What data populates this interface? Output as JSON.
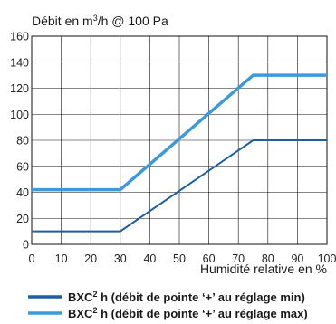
{
  "chart_data": {
    "type": "line",
    "ylabel": {
      "prefix": "Débit en m",
      "sup": "3",
      "suffix": "/h @ 100 Pa"
    },
    "xlabel": "Humidité relative en %",
    "xlim": [
      0,
      100
    ],
    "ylim": [
      0,
      160
    ],
    "x_ticks": [
      "0",
      "10",
      "20",
      "30",
      "40",
      "50",
      "60",
      "70",
      "80",
      "90",
      "100"
    ],
    "y_ticks": [
      "0",
      "20",
      "40",
      "60",
      "80",
      "100",
      "120",
      "140",
      "160"
    ],
    "grid": true,
    "legend_position": "bottom",
    "series": [
      {
        "name": {
          "prefix": "BXC",
          "sup": "2",
          "suffix": " h (débit de pointe ‘+’ au réglage min)"
        },
        "color": "#1f5fa0",
        "points": [
          [
            0,
            10
          ],
          [
            30,
            10
          ],
          [
            75,
            80
          ],
          [
            100,
            80
          ]
        ]
      },
      {
        "name": {
          "prefix": "BXC",
          "sup": "2",
          "suffix": " h (débit de pointe ‘+’ au réglage max)"
        },
        "color": "#3d9ad9",
        "points": [
          [
            0,
            42
          ],
          [
            30,
            42
          ],
          [
            75,
            130
          ],
          [
            100,
            130
          ]
        ]
      }
    ]
  }
}
